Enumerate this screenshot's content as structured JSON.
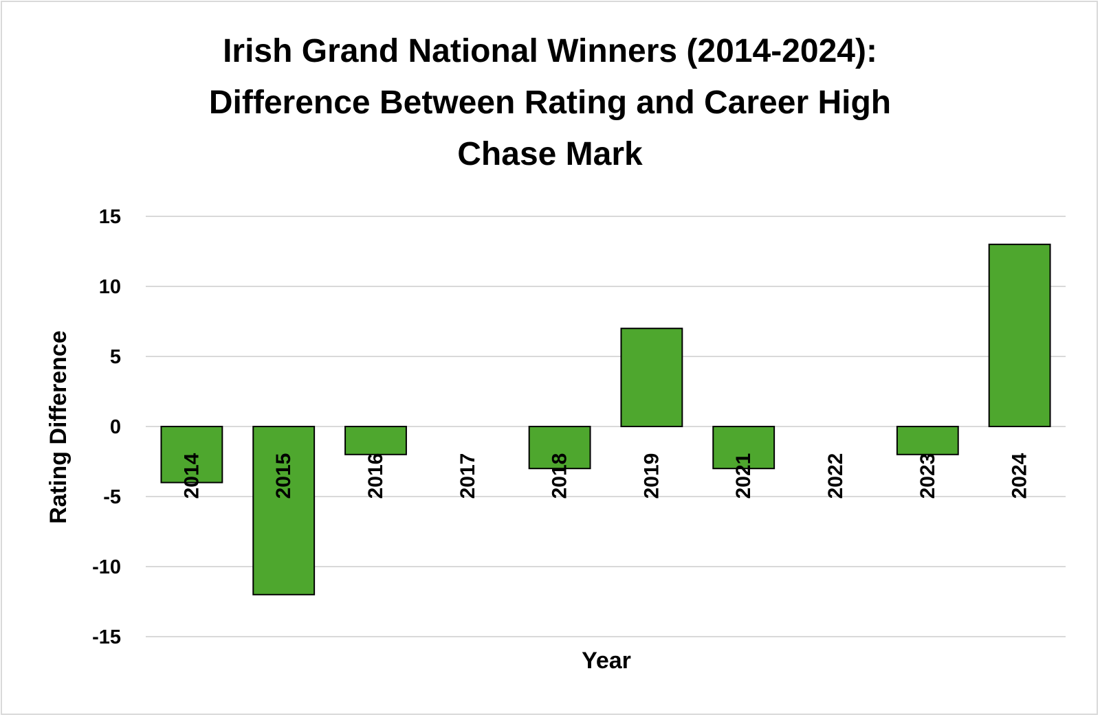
{
  "chart_data": {
    "type": "bar",
    "title": "Irish Grand National Winners (2014-2024): Difference Between Rating and Career High Chase Mark",
    "title_lines": [
      "Irish Grand National Winners (2014-2024):",
      "Difference Between Rating and Career High",
      "Chase Mark"
    ],
    "xlabel": "Year",
    "ylabel": "Rating Difference",
    "categories": [
      "2014",
      "2015",
      "2016",
      "2017",
      "2018",
      "2019",
      "2021",
      "2022",
      "2023",
      "2024"
    ],
    "values": [
      -4,
      -12,
      -2,
      0,
      -3,
      7,
      -3,
      0,
      -2,
      13
    ],
    "ylim": [
      -15,
      15
    ],
    "yticks": [
      15,
      10,
      5,
      0,
      -5,
      -10,
      -15
    ],
    "ytick_labels": [
      "15",
      "10",
      "5",
      "0",
      "-5",
      "-10",
      "-15"
    ],
    "grid": true,
    "legend": false,
    "bar_color": "#4ea72e",
    "bar_outline_color": "#000000",
    "gridline_color": "#d9d9d9"
  }
}
